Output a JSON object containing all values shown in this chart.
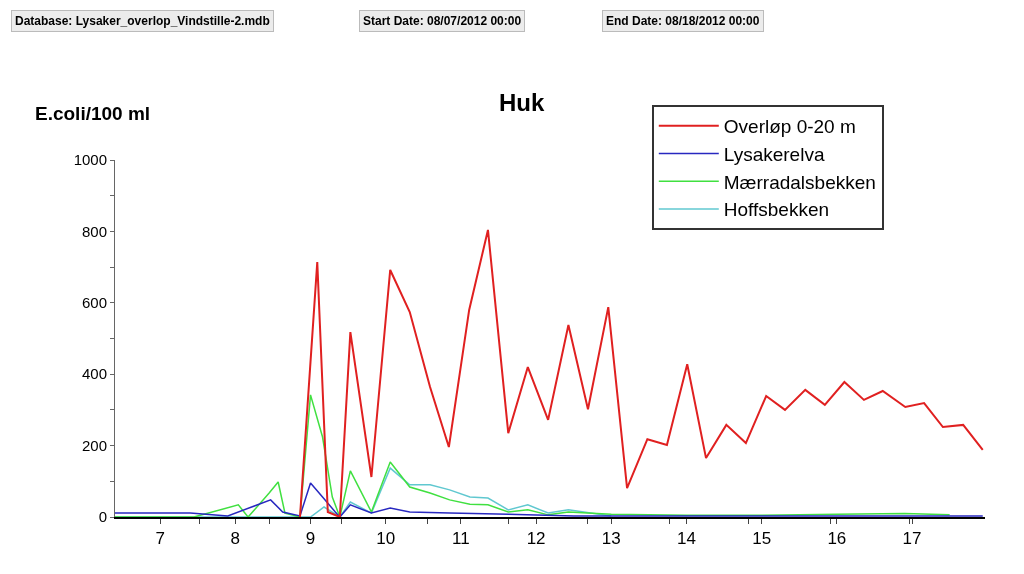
{
  "chart_data": {
    "type": "line",
    "title": "Huk",
    "ylabel": "E.coli/100 ml",
    "annotations": [
      "Database: Lysaker_overlop_Vindstille-2.mdb",
      "Start Date: 08/07/2012 00:00",
      "End Date: 08/18/2012 00:00"
    ],
    "xlim": [
      6.4,
      17.97
    ],
    "xticks": [
      7,
      {
        "value": 7.53,
        "label": null
      },
      8,
      {
        "value": 8.46,
        "label": null
      },
      9,
      {
        "value": 9.41,
        "label": null
      },
      10,
      {
        "value": 10.56,
        "label": null
      },
      11,
      {
        "value": 11.63,
        "label": null
      },
      12,
      {
        "value": 12.69,
        "label": null
      },
      13,
      {
        "value": 13.77,
        "label": null
      },
      14,
      {
        "value": 14.83,
        "label": null
      },
      15,
      {
        "value": 15.91,
        "label": null
      },
      16,
      {
        "value": 16.97,
        "label": null
      },
      17
    ],
    "ylim": [
      0,
      1000
    ],
    "yticks": [
      0,
      {
        "value": 100,
        "label": null
      },
      200,
      {
        "value": 300,
        "label": null
      },
      400,
      {
        "value": 500,
        "label": null
      },
      600,
      {
        "value": 700,
        "label": null
      },
      800,
      {
        "value": 900,
        "label": null
      },
      1000
    ],
    "grid": false,
    "legend": "top right",
    "marker": "none",
    "line_style": "solid",
    "series": [
      {
        "name": "Overløp 0-20 m",
        "color": "#e02020",
        "x": [
          8.86,
          9.09,
          9.23,
          9.39,
          9.53,
          9.81,
          10.06,
          10.32,
          10.59,
          10.84,
          11.11,
          11.36,
          11.63,
          11.89,
          12.16,
          12.43,
          12.69,
          12.96,
          13.21,
          13.48,
          13.74,
          14.01,
          14.26,
          14.53,
          14.79,
          15.06,
          15.31,
          15.58,
          15.84,
          16.1,
          16.36,
          16.61,
          16.91,
          17.16,
          17.41,
          17.68,
          17.94
        ],
        "values": [
          0,
          714,
          14,
          0,
          518,
          112,
          692,
          574,
          364,
          196,
          580,
          804,
          235,
          420,
          272,
          538,
          302,
          588,
          81,
          218,
          202,
          428,
          165,
          258,
          207,
          339,
          300,
          356,
          314,
          378,
          328,
          353,
          308,
          319,
          252,
          258,
          188
        ]
      },
      {
        "name": "Lysakerelva",
        "color": "#2828c0",
        "x": [
          6.4,
          7.4,
          7.9,
          8.47,
          8.63,
          8.86,
          9.0,
          9.16,
          9.33,
          9.39,
          9.53,
          9.81,
          10.06,
          10.32,
          10.85,
          11.63,
          12.5,
          14.0,
          16.0,
          17.94
        ],
        "values": [
          11,
          11,
          3,
          48,
          14,
          3,
          95,
          56,
          14,
          0,
          34,
          11,
          25,
          14,
          11,
          8,
          3,
          3,
          3,
          3
        ]
      },
      {
        "name": "Mærradalsbekken",
        "color": "#40e040",
        "x": [
          6.4,
          7.45,
          8.04,
          8.17,
          8.45,
          8.57,
          8.66,
          8.86,
          9.0,
          9.16,
          9.29,
          9.39,
          9.53,
          9.81,
          10.06,
          10.32,
          10.59,
          10.85,
          11.12,
          11.36,
          11.63,
          11.89,
          12.16,
          12.43,
          13.0,
          14.0,
          15.0,
          16.0,
          16.9,
          17.5
        ],
        "values": [
          0,
          0,
          34,
          0,
          67,
          98,
          11,
          0,
          342,
          224,
          56,
          0,
          129,
          14,
          154,
          84,
          67,
          48,
          36,
          34,
          14,
          20,
          6,
          14,
          8,
          5,
          5,
          8,
          10,
          6
        ]
      },
      {
        "name": "Hoffsbekken",
        "color": "#60c8d0",
        "x": [
          6.4,
          9.0,
          9.18,
          9.39,
          9.53,
          9.81,
          10.06,
          10.32,
          10.59,
          10.85,
          11.12,
          11.36,
          11.63,
          11.89,
          12.16,
          12.43,
          13.0
        ],
        "values": [
          0,
          0,
          28,
          0,
          42,
          11,
          137,
          90,
          90,
          76,
          56,
          53,
          20,
          34,
          11,
          20,
          3
        ]
      }
    ]
  }
}
